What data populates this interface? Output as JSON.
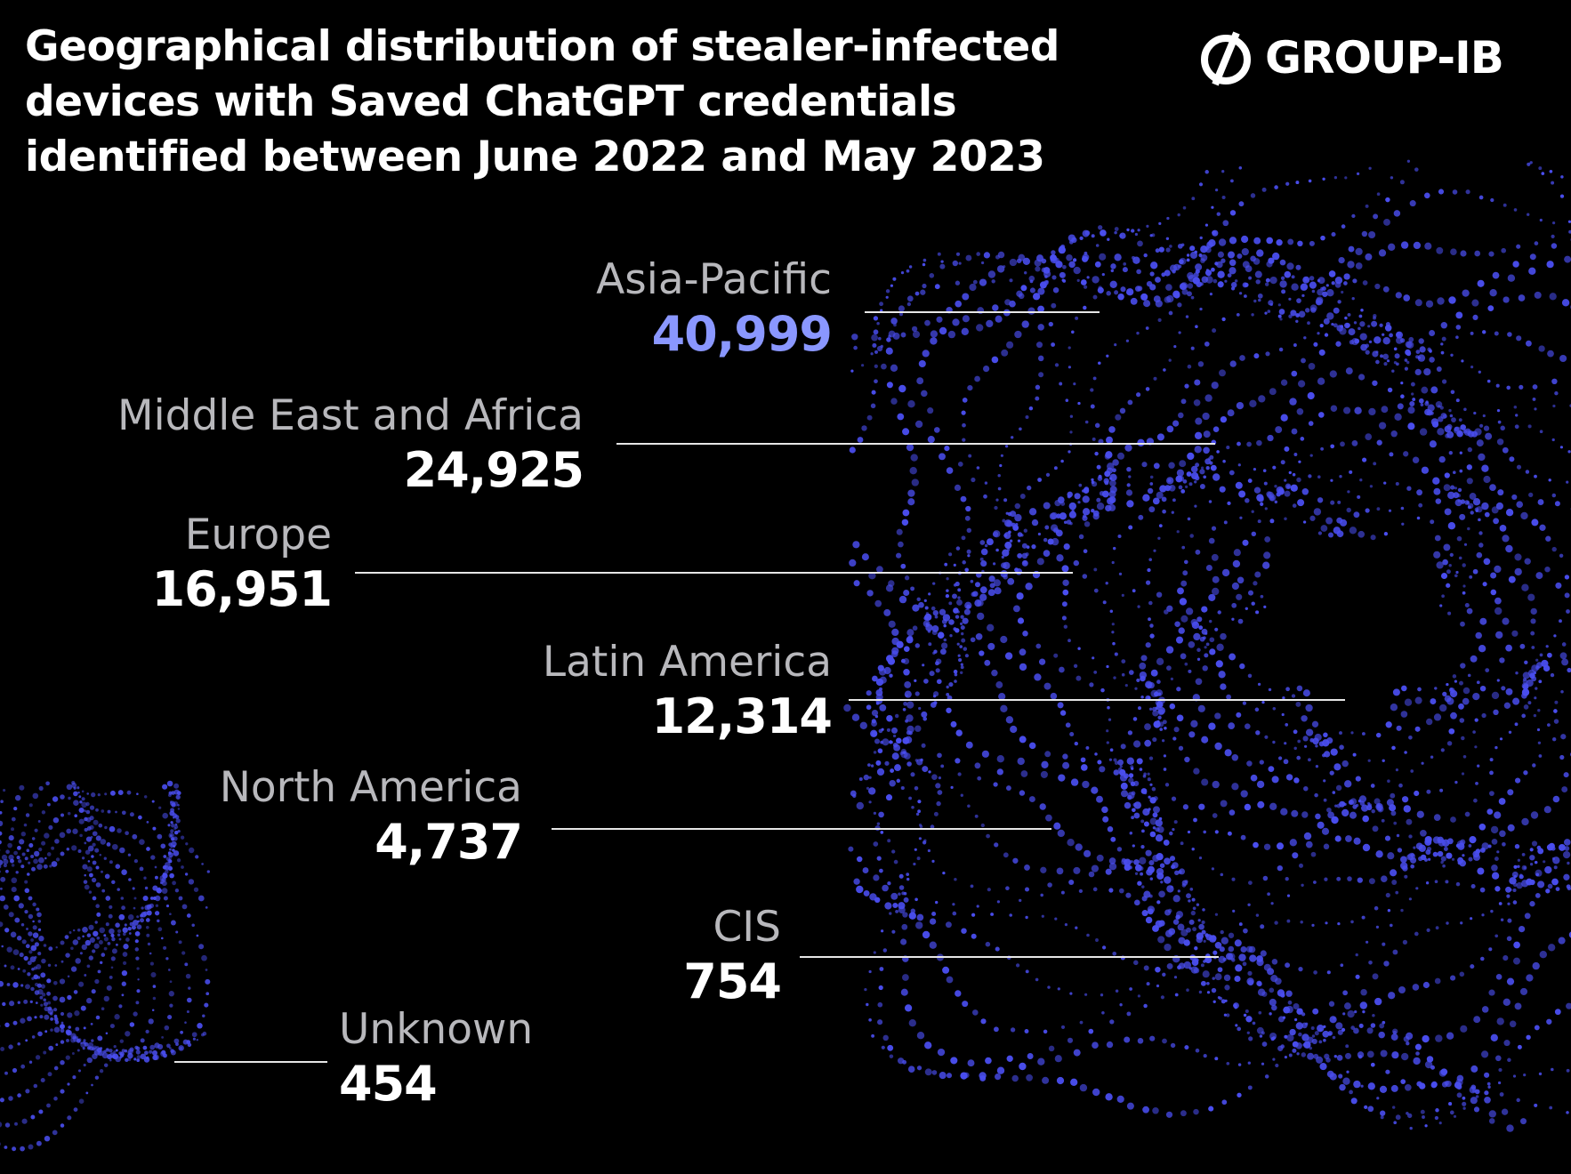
{
  "title_lines": [
    "Geographical distribution of stealer-infected",
    "devices with Saved ChatGPT credentials",
    "identified between June 2022 and May 2023"
  ],
  "logo": {
    "text": "GROUP-IB",
    "icon": "group-ib-logo-icon"
  },
  "colors": {
    "background": "#000000",
    "accent": "#8a97ff",
    "particles": "#4a4ef0",
    "label": "#b8b8bc",
    "value": "#ffffff"
  },
  "chart_data": {
    "type": "table",
    "title": "Geographical distribution of stealer-infected devices with Saved ChatGPT credentials identified between June 2022 and May 2023",
    "categories": [
      "Asia-Pacific",
      "Middle East and Africa",
      "Europe",
      "Latin America",
      "North America",
      "CIS",
      "Unknown"
    ],
    "values": [
      40999,
      24925,
      16951,
      12314,
      4737,
      754,
      454
    ],
    "display_values": [
      "40,999",
      "24,925",
      "16,951",
      "12,314",
      "4,737",
      "754",
      "454"
    ],
    "highlight": "Asia-Pacific"
  }
}
